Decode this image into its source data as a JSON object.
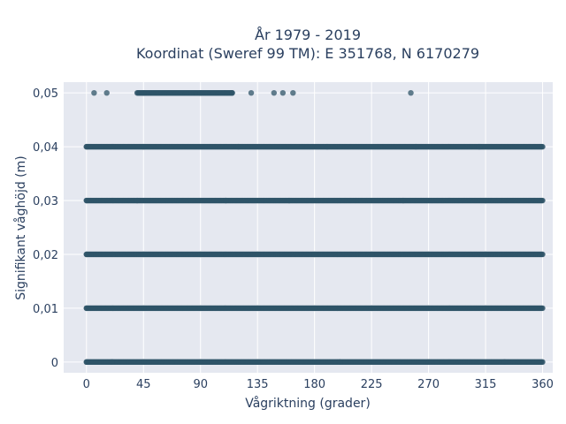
{
  "chart_data": {
    "type": "scatter",
    "title_line1": "År 1979 - 2019",
    "title_line2": "Koordinat (Sweref 99 TM): E 351768, N 6170279",
    "xlabel": "Vågriktning (grader)",
    "ylabel": "Signifikant våghöjd (m)",
    "xlim": [
      -18,
      368
    ],
    "ylim": [
      -0.002,
      0.052
    ],
    "x_ticks": [
      0,
      45,
      90,
      135,
      180,
      225,
      270,
      315,
      360
    ],
    "x_tick_labels": [
      "0",
      "45",
      "90",
      "135",
      "180",
      "225",
      "270",
      "315",
      "360"
    ],
    "y_ticks": [
      0,
      0.01,
      0.02,
      0.03,
      0.04,
      0.05
    ],
    "y_tick_labels": [
      "0",
      "0,01",
      "0,02",
      "0,03",
      "0,04",
      "0,05"
    ],
    "grid": true,
    "marker_color": "#2f5468",
    "background_color": "#e5e8f0",
    "points": [
      {
        "x": 0,
        "y": 0
      },
      {
        "x": 20,
        "y": 0
      },
      {
        "x": 45,
        "y": 0
      },
      {
        "x": 90,
        "y": 0
      },
      {
        "x": 135,
        "y": 0
      },
      {
        "x": 200,
        "y": 0
      },
      {
        "x": 270,
        "y": 0
      },
      {
        "x": 330,
        "y": 0
      },
      {
        "x": 360,
        "y": 0
      },
      {
        "x": 0,
        "y": 0.01
      },
      {
        "x": 45,
        "y": 0.01
      },
      {
        "x": 90,
        "y": 0.01
      },
      {
        "x": 135,
        "y": 0.01
      },
      {
        "x": 180,
        "y": 0.01
      },
      {
        "x": 225,
        "y": 0.01
      },
      {
        "x": 270,
        "y": 0.01
      },
      {
        "x": 315,
        "y": 0.01
      },
      {
        "x": 360,
        "y": 0.01
      },
      {
        "x": 0,
        "y": 0.02
      },
      {
        "x": 45,
        "y": 0.02
      },
      {
        "x": 90,
        "y": 0.02
      },
      {
        "x": 135,
        "y": 0.02
      },
      {
        "x": 180,
        "y": 0.02
      },
      {
        "x": 225,
        "y": 0.02
      },
      {
        "x": 270,
        "y": 0.02
      },
      {
        "x": 315,
        "y": 0.02
      },
      {
        "x": 360,
        "y": 0.02
      },
      {
        "x": 0,
        "y": 0.03
      },
      {
        "x": 40,
        "y": 0.03
      },
      {
        "x": 110,
        "y": 0.03
      },
      {
        "x": 160,
        "y": 0.03
      },
      {
        "x": 250,
        "y": 0.03
      },
      {
        "x": 315,
        "y": 0.03
      },
      {
        "x": 360,
        "y": 0.03
      },
      {
        "x": 0,
        "y": 0.04
      },
      {
        "x": 45,
        "y": 0.04
      },
      {
        "x": 120,
        "y": 0.04
      },
      {
        "x": 190,
        "y": 0.04
      },
      {
        "x": 260,
        "y": 0.04
      },
      {
        "x": 310,
        "y": 0.04
      },
      {
        "x": 360,
        "y": 0.04
      },
      {
        "x": 6,
        "y": 0.05
      },
      {
        "x": 16,
        "y": 0.05
      },
      {
        "x": 45,
        "y": 0.05
      },
      {
        "x": 90,
        "y": 0.05
      },
      {
        "x": 115,
        "y": 0.05
      },
      {
        "x": 130,
        "y": 0.05
      },
      {
        "x": 148,
        "y": 0.05
      },
      {
        "x": 155,
        "y": 0.05
      },
      {
        "x": 163,
        "y": 0.05
      },
      {
        "x": 256,
        "y": 0.05
      }
    ],
    "dense_segments": [
      {
        "y": 0,
        "x_range": [
          0,
          360
        ]
      },
      {
        "y": 0.01,
        "x_range": [
          0,
          360
        ]
      },
      {
        "y": 0.02,
        "x_range": [
          0,
          360
        ]
      },
      {
        "y": 0.03,
        "x_range": [
          0,
          360
        ]
      },
      {
        "y": 0.04,
        "x_range": [
          0,
          360
        ]
      },
      {
        "y": 0.05,
        "x_range": [
          40,
          115
        ]
      }
    ]
  }
}
